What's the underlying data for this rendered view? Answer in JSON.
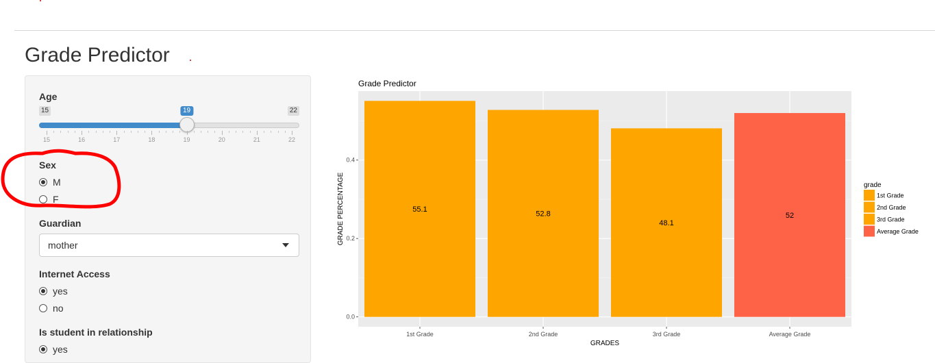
{
  "page": {
    "title": "Grade Predictor"
  },
  "sidebar": {
    "age": {
      "label": "Age",
      "min": 15,
      "max": 22,
      "value": 19,
      "min_label": "15",
      "max_label": "22",
      "value_label": "19",
      "ticks": [
        "15",
        "16",
        "17",
        "18",
        "19",
        "20",
        "21",
        "22"
      ]
    },
    "sex": {
      "label": "Sex",
      "options": [
        {
          "label": "M",
          "checked": true
        },
        {
          "label": "F",
          "checked": false
        }
      ]
    },
    "guardian": {
      "label": "Guardian",
      "value": "mother"
    },
    "internet": {
      "label": "Internet Access",
      "options": [
        {
          "label": "yes",
          "checked": true
        },
        {
          "label": "no",
          "checked": false
        }
      ]
    },
    "relationship": {
      "label": "Is student in relationship",
      "options": [
        {
          "label": "yes",
          "checked": true
        }
      ]
    }
  },
  "annotation": {
    "color": "#ff0000"
  },
  "colors": {
    "accent": "#428bca",
    "bar_grade": "#ffa500",
    "bar_average": "#ff6347",
    "panel_bg": "#ebebeb"
  },
  "chart_data": {
    "type": "bar",
    "title": "Grade Predictor",
    "xlabel": "GRADES",
    "ylabel": "GRADE PERCENTAGE",
    "categories": [
      "1st Grade",
      "2nd Grade",
      "3rd Grade",
      "Average Grade"
    ],
    "values": [
      0.551,
      0.528,
      0.481,
      0.52
    ],
    "data_labels": [
      "55.1",
      "52.8",
      "48.1",
      "52"
    ],
    "colors": [
      "#ffa500",
      "#ffa500",
      "#ffa500",
      "#ff6347"
    ],
    "yticks": [
      0.0,
      0.2,
      0.4
    ],
    "ytick_labels": [
      "0.0",
      "0.2",
      "0.4"
    ],
    "ylim": [
      -0.025,
      0.576
    ],
    "legend": {
      "title": "grade",
      "entries": [
        "1st Grade",
        "2nd Grade",
        "3rd Grade",
        "Average Grade"
      ],
      "position": "right"
    },
    "grid": true
  }
}
